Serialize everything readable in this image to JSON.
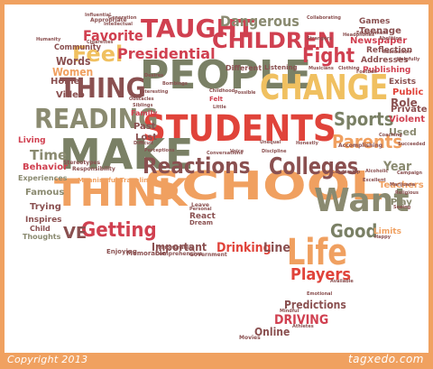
{
  "footer": {
    "copyright": "Copyright 2013",
    "brand": "tagxedo.com"
  },
  "colors": {
    "frame": "#f0a160",
    "background": "#ffffff"
  },
  "words": [
    {
      "text": "SCHOOL",
      "color": "#f0a060"
    },
    {
      "text": "PEOPLE",
      "color": "#7a8065"
    },
    {
      "text": "STUDENTS",
      "color": "#e0433a"
    },
    {
      "text": "MAKE",
      "color": "#7a8065"
    },
    {
      "text": "THINK",
      "color": "#f0a060"
    },
    {
      "text": "CHANGE",
      "color": "#f0c060"
    },
    {
      "text": "CHILDREN",
      "color": "#d04050"
    },
    {
      "text": "TAUGHT",
      "color": "#d04050"
    },
    {
      "text": "Reactions",
      "color": "#8a5050"
    },
    {
      "text": "Colleges",
      "color": "#8a5050"
    },
    {
      "text": "Want",
      "color": "#8a8a70"
    },
    {
      "text": "READING",
      "color": "#8a8a70"
    },
    {
      "text": "Life",
      "color": "#f0a060"
    },
    {
      "text": "Parents",
      "color": "#f0a060"
    },
    {
      "text": "THING",
      "color": "#8a5050"
    },
    {
      "text": "Sports",
      "color": "#7a8065"
    },
    {
      "text": "Good",
      "color": "#7a8065"
    },
    {
      "text": "Getting",
      "color": "#d04050"
    },
    {
      "text": "Feel",
      "color": "#f0c060"
    },
    {
      "text": "Fight",
      "color": "#d04050"
    },
    {
      "text": "Presidential",
      "color": "#d04050"
    },
    {
      "text": "Dangerous",
      "color": "#8a8a70"
    },
    {
      "text": "Favorite",
      "color": "#d04050"
    },
    {
      "text": "Players",
      "color": "#e0433a"
    },
    {
      "text": "Drinking",
      "color": "#e0433a"
    },
    {
      "text": "Line",
      "color": "#8a5050"
    },
    {
      "text": "Important",
      "color": "#8a5050"
    },
    {
      "text": "Predictions",
      "color": "#8a5050"
    },
    {
      "text": "DRIVING",
      "color": "#d04050"
    },
    {
      "text": "Online",
      "color": "#8a5050"
    },
    {
      "text": "Time",
      "color": "#8a8a70"
    },
    {
      "text": "Behavior",
      "color": "#d04050"
    },
    {
      "text": "Year",
      "color": "#8a8a70"
    },
    {
      "text": "Play",
      "color": "#8a8a70"
    },
    {
      "text": "Role",
      "color": "#8a5050"
    },
    {
      "text": "Public",
      "color": "#e0433a"
    },
    {
      "text": "Private",
      "color": "#8a5050"
    },
    {
      "text": "Violent",
      "color": "#d04050"
    },
    {
      "text": "Used",
      "color": "#8a8a70"
    },
    {
      "text": "Exists",
      "color": "#8a5050"
    },
    {
      "text": "Teachers",
      "color": "#f0a060"
    },
    {
      "text": "Limits",
      "color": "#f0a060"
    },
    {
      "text": "Words",
      "color": "#8a5050"
    },
    {
      "text": "Women",
      "color": "#f0a060"
    },
    {
      "text": "Video",
      "color": "#8a5050"
    },
    {
      "text": "Home",
      "color": "#8a5050"
    },
    {
      "text": "Community",
      "color": "#8a5050"
    },
    {
      "text": "Teenage",
      "color": "#8a5050"
    },
    {
      "text": "Games",
      "color": "#8a5050"
    },
    {
      "text": "Newspaper",
      "color": "#d04050"
    },
    {
      "text": "Reflection",
      "color": "#8a5050"
    },
    {
      "text": "Addresses",
      "color": "#8a5050"
    },
    {
      "text": "Publishing",
      "color": "#d04050"
    },
    {
      "text": "Living",
      "color": "#d04050"
    },
    {
      "text": "Experiences",
      "color": "#8a8a70"
    },
    {
      "text": "Famous",
      "color": "#8a8a70"
    },
    {
      "text": "Trying",
      "color": "#8a5050"
    },
    {
      "text": "Inspires",
      "color": "#8a5050"
    },
    {
      "text": "Thoughts",
      "color": "#8a8a70"
    },
    {
      "text": "Child",
      "color": "#8a5050"
    },
    {
      "text": "VE",
      "color": "#8a5050"
    },
    {
      "text": "Family",
      "color": "#d04050"
    },
    {
      "text": "Past",
      "color": "#8a5050"
    },
    {
      "text": "Lost",
      "color": "#8a5050"
    },
    {
      "text": "Different",
      "color": "#8a5050"
    },
    {
      "text": "Listening",
      "color": "#8a5050"
    },
    {
      "text": "Memorable",
      "color": "#8a5050"
    },
    {
      "text": "Enjoying",
      "color": "#8a5050"
    },
    {
      "text": "Meaningful",
      "color": "#f0a060"
    },
    {
      "text": "Traveling",
      "color": "#f0a060"
    },
    {
      "text": "Responsibility",
      "color": "#8a5050"
    },
    {
      "text": "Stereotypes",
      "color": "#8a5050"
    },
    {
      "text": "React",
      "color": "#8a5050"
    },
    {
      "text": "Dream",
      "color": "#8a5050"
    },
    {
      "text": "Leave",
      "color": "#8a5050"
    },
    {
      "text": "Government",
      "color": "#8a5050"
    },
    {
      "text": "Comprehensive",
      "color": "#8a5050"
    },
    {
      "text": "Movies",
      "color": "#8a5050"
    },
    {
      "text": "Athletes",
      "color": "#8a5050"
    },
    {
      "text": "Mindful",
      "color": "#8a5050"
    },
    {
      "text": "Available",
      "color": "#8a5050"
    },
    {
      "text": "Emotional",
      "color": "#8a5050"
    },
    {
      "text": "Accomplishing",
      "color": "#8a5050"
    },
    {
      "text": "Succeeded",
      "color": "#8a5050"
    },
    {
      "text": "Campaign",
      "color": "#8a5050"
    },
    {
      "text": "Leadership",
      "color": "#8a5050"
    },
    {
      "text": "Alcoholic",
      "color": "#8a5050"
    },
    {
      "text": "Religious",
      "color": "#8a5050"
    },
    {
      "text": "Seeing",
      "color": "#8a5050"
    },
    {
      "text": "Happy",
      "color": "#8a5050"
    },
    {
      "text": "Appropriate",
      "color": "#8a5050"
    },
    {
      "text": "Collaborating",
      "color": "#8a5050"
    },
    {
      "text": "Musicians",
      "color": "#8a5050"
    },
    {
      "text": "Clothing",
      "color": "#8a5050"
    },
    {
      "text": "Football",
      "color": "#8a5050"
    },
    {
      "text": "Influential",
      "color": "#8a5050"
    },
    {
      "text": "Bombings",
      "color": "#8a5050"
    },
    {
      "text": "Obstacles",
      "color": "#8a5050"
    },
    {
      "text": "Siblings",
      "color": "#8a5050"
    },
    {
      "text": "Childhood",
      "color": "#8a5050"
    },
    {
      "text": "Felt",
      "color": "#d04050"
    },
    {
      "text": "Little",
      "color": "#8a5050"
    },
    {
      "text": "Conversations",
      "color": "#8a5050"
    },
    {
      "text": "Discipline",
      "color": "#8a5050"
    },
    {
      "text": "Unequal",
      "color": "#8a5050"
    },
    {
      "text": "Voice",
      "color": "#8a5050"
    },
    {
      "text": "Honestly",
      "color": "#8a5050"
    },
    {
      "text": "Cigarettes",
      "color": "#8a5050"
    },
    {
      "text": "Strangers",
      "color": "#8a5050"
    },
    {
      "text": "Abolition",
      "color": "#8a5050"
    },
    {
      "text": "Employment",
      "color": "#8a5050"
    },
    {
      "text": "Headphones",
      "color": "#8a5050"
    },
    {
      "text": "Marijuana",
      "color": "#8a5050"
    },
    {
      "text": "Excellent",
      "color": "#8a5050"
    },
    {
      "text": "Coaching",
      "color": "#8a5050"
    },
    {
      "text": "Realization",
      "color": "#8a5050"
    },
    {
      "text": "Helpfully",
      "color": "#8a5050"
    },
    {
      "text": "Perceptions",
      "color": "#8a5050"
    },
    {
      "text": "Difficult",
      "color": "#8a5050"
    },
    {
      "text": "Interesting",
      "color": "#8a5050"
    },
    {
      "text": "Desires",
      "color": "#8a5050"
    },
    {
      "text": "Personal",
      "color": "#8a5050"
    },
    {
      "text": "Humanity",
      "color": "#8a5050"
    },
    {
      "text": "Generation",
      "color": "#8a5050"
    },
    {
      "text": "Possible",
      "color": "#8a5050"
    },
    {
      "text": "Unfortunately",
      "color": "#8a5050"
    },
    {
      "text": "Intellectual",
      "color": "#8a5050"
    }
  ]
}
